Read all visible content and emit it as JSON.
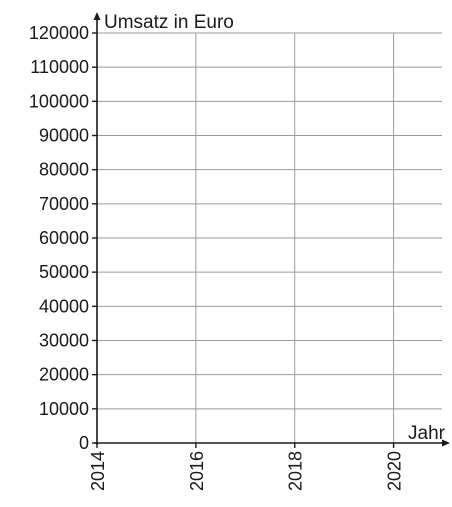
{
  "chart_data": {
    "type": "line",
    "title": "",
    "xlabel": "Jahr",
    "ylabel": "Umsatz in Euro",
    "x_ticks": [
      "2014",
      "2016",
      "2018",
      "2020"
    ],
    "y_ticks": [
      "0",
      "10000",
      "20000",
      "30000",
      "40000",
      "50000",
      "60000",
      "70000",
      "80000",
      "90000",
      "100000",
      "110000",
      "120000"
    ],
    "xlim": [
      2014,
      2021
    ],
    "ylim": [
      0,
      120000
    ],
    "grid": true,
    "series": []
  },
  "colors": {
    "grid": "#9a9a9a",
    "axis": "#1a1a1a",
    "text": "#1a1a1a"
  }
}
